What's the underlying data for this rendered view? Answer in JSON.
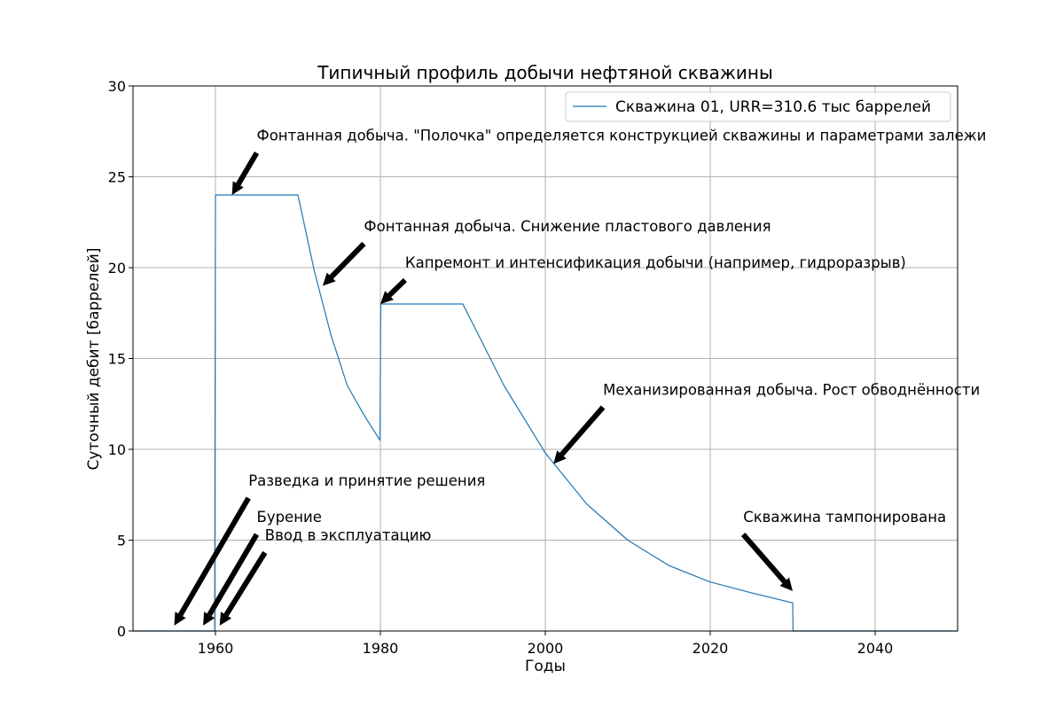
{
  "chart_data": {
    "type": "line",
    "title": "Типичный профиль добычи нефтяной скважины",
    "xlabel": "Годы",
    "ylabel": "Суточный дебит [баррелей]",
    "xlim": [
      1950,
      2050
    ],
    "ylim": [
      0,
      30
    ],
    "xticks": [
      1960,
      1980,
      2000,
      2020,
      2040
    ],
    "yticks": [
      0,
      5,
      10,
      15,
      20,
      25,
      30
    ],
    "grid": true,
    "legend_position": "top-right",
    "series": [
      {
        "name": "Скважина 01, URR=310.6 тыс баррелей",
        "color": "#1f77b4",
        "x": [
          1950,
          1959.9,
          1960,
          1960.05,
          1970,
          1972,
          1974,
          1976,
          1978,
          1979.95,
          1980.05,
          1990,
          1995,
          2000,
          2005,
          2010,
          2015,
          2020,
          2025,
          2030,
          2030.05,
          2050
        ],
        "y": [
          0,
          0,
          24,
          24,
          24,
          19.8,
          16.3,
          13.5,
          11.9,
          10.5,
          18,
          18,
          13.5,
          9.8,
          7.0,
          5.0,
          3.6,
          2.7,
          2.1,
          1.55,
          0,
          0
        ]
      }
    ],
    "annotations": [
      {
        "text": "Фонтанная добыча. \"Полочка\" определяется конструкцией скважины и параметрами залежи",
        "xy": [
          1962,
          24
        ],
        "xytext": [
          1965,
          27
        ]
      },
      {
        "text": "Фонтанная добыча. Снижение пластового давления",
        "xy": [
          1973,
          19
        ],
        "xytext": [
          1978,
          22
        ]
      },
      {
        "text": "Капремонт и интенсификация добычи (например, гидроразрыв)",
        "xy": [
          1980,
          18
        ],
        "xytext": [
          1983,
          20
        ]
      },
      {
        "text": "Механизированная добыча. Рост обводнённости",
        "xy": [
          2001,
          9.2
        ],
        "xytext": [
          2007,
          13
        ]
      },
      {
        "text": "Разведка и принятие решения",
        "xy": [
          1955,
          0.3
        ],
        "xytext": [
          1964,
          8
        ]
      },
      {
        "text": "Бурение",
        "xy": [
          1958.5,
          0.3
        ],
        "xytext": [
          1965,
          6
        ]
      },
      {
        "text": "Ввод в эксплуатацию",
        "xy": [
          1960.5,
          0.3
        ],
        "xytext": [
          1966,
          5
        ]
      },
      {
        "text": "Скважина тампонирована",
        "xy": [
          2030,
          2.2
        ],
        "xytext": [
          2024,
          6
        ]
      }
    ]
  }
}
